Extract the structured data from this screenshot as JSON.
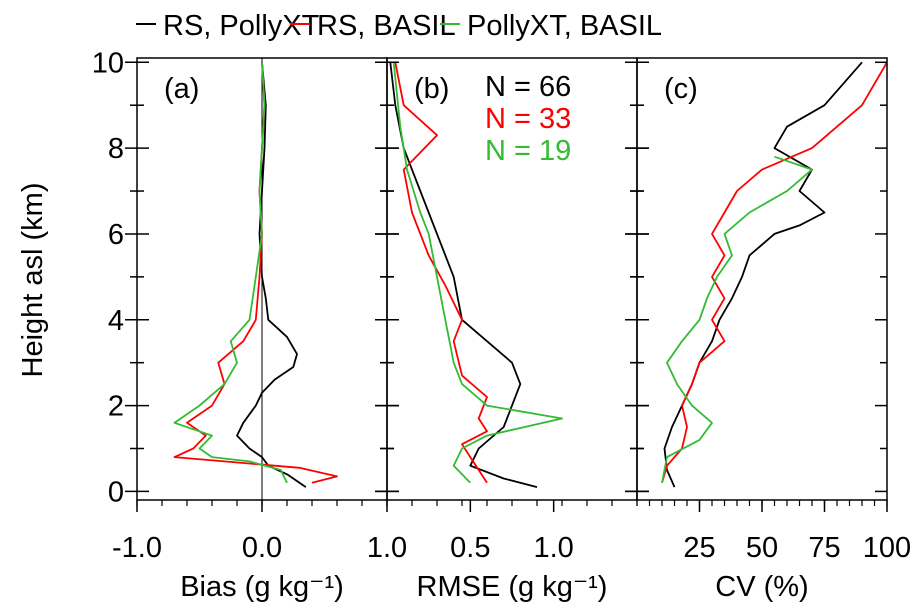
{
  "legend": [
    {
      "name": "RS, PollyXT",
      "color": "#000000"
    },
    {
      "name": "RS, BASIL",
      "color": "#ff0000"
    },
    {
      "name": "PollyXT, BASIL",
      "color": "#33bb33"
    }
  ],
  "shared_y": {
    "label": "Height asl (km)",
    "ticks": [
      0,
      2,
      4,
      6,
      8,
      10
    ],
    "tick_labels": [
      "0",
      "2",
      "4",
      "6",
      "8",
      "10"
    ],
    "range": [
      -0.2,
      10.1
    ]
  },
  "chart_data": [
    {
      "type": "line",
      "panel": "(a)",
      "xlabel": "Bias (g kg⁻¹)",
      "xlim": [
        -1.0,
        1.0
      ],
      "xticks": [
        -1.0,
        0.0,
        1.0
      ],
      "xtick_labels": [
        "-1.0",
        "0.0",
        "1.0"
      ],
      "zero_line": true,
      "series": [
        {
          "name": "RS, PollyXT",
          "color": "#000000",
          "x": [
            0.35,
            0.25,
            0.2,
            0.05,
            0.0,
            -0.1,
            -0.2,
            -0.15,
            -0.05,
            0.0,
            0.1,
            0.25,
            0.28,
            0.2,
            0.05,
            0.03,
            0.0,
            -0.02,
            0.0,
            0.02,
            0.03,
            0.0
          ],
          "y": [
            0.1,
            0.3,
            0.4,
            0.6,
            0.8,
            1.0,
            1.3,
            1.6,
            2.0,
            2.3,
            2.6,
            2.9,
            3.2,
            3.6,
            4.0,
            4.5,
            5.0,
            6.0,
            7.0,
            8.0,
            9.0,
            10.0
          ]
        },
        {
          "name": "RS, BASIL",
          "color": "#ff0000",
          "x": [
            0.4,
            0.6,
            0.3,
            -0.3,
            -0.7,
            -0.55,
            -0.45,
            -0.6,
            -0.4,
            -0.3,
            -0.35,
            -0.15,
            -0.05,
            -0.02,
            0.0,
            -0.02,
            0.0,
            0.02,
            0.0
          ],
          "y": [
            0.2,
            0.35,
            0.55,
            0.7,
            0.8,
            1.0,
            1.3,
            1.6,
            2.0,
            2.5,
            3.0,
            3.5,
            4.0,
            5.0,
            6.0,
            7.0,
            8.0,
            9.0,
            10.0
          ]
        },
        {
          "name": "PollyXT, BASIL",
          "color": "#33bb33",
          "x": [
            0.2,
            0.15,
            -0.1,
            -0.4,
            -0.5,
            -0.4,
            -0.7,
            -0.5,
            -0.3,
            -0.2,
            -0.25,
            -0.1,
            -0.05,
            0.0,
            -0.02,
            0.0,
            0.02,
            0.0
          ],
          "y": [
            0.2,
            0.5,
            0.7,
            0.8,
            1.0,
            1.3,
            1.6,
            2.0,
            2.5,
            3.0,
            3.5,
            4.0,
            5.0,
            6.0,
            7.0,
            8.0,
            9.0,
            10.0
          ]
        }
      ]
    },
    {
      "type": "line",
      "panel": "(b)",
      "xlabel": "RMSE (g kg⁻¹)",
      "xlim": [
        0.0,
        1.5
      ],
      "xticks": [
        0.5,
        1.0
      ],
      "xtick_labels": [
        "0.5",
        "1.0"
      ],
      "annotations": [
        {
          "text": "N = 66",
          "color": "#000000"
        },
        {
          "text": "N = 33",
          "color": "#ff0000"
        },
        {
          "text": "N = 19",
          "color": "#33bb33"
        }
      ],
      "series": [
        {
          "name": "RS, PollyXT",
          "color": "#000000",
          "x": [
            0.9,
            0.7,
            0.5,
            0.55,
            0.7,
            0.75,
            0.8,
            0.75,
            0.6,
            0.45,
            0.4,
            0.3,
            0.2,
            0.15,
            0.1,
            0.05,
            0.02
          ],
          "y": [
            0.1,
            0.3,
            0.6,
            1.0,
            1.5,
            2.0,
            2.5,
            3.0,
            3.5,
            4.0,
            5.0,
            6.0,
            7.0,
            7.5,
            8.0,
            9.0,
            10.0
          ]
        },
        {
          "name": "RS, BASIL",
          "color": "#ff0000",
          "x": [
            0.6,
            0.55,
            0.5,
            0.45,
            0.6,
            0.55,
            0.6,
            0.45,
            0.4,
            0.45,
            0.35,
            0.25,
            0.15,
            0.1,
            0.3,
            0.1,
            0.05
          ],
          "y": [
            0.2,
            0.5,
            0.8,
            1.1,
            1.4,
            1.7,
            2.2,
            2.7,
            3.5,
            4.0,
            4.8,
            5.5,
            6.5,
            7.5,
            8.3,
            9.0,
            10.0
          ]
        },
        {
          "name": "PollyXT, BASIL",
          "color": "#33bb33",
          "x": [
            0.5,
            0.4,
            0.45,
            0.6,
            1.05,
            0.6,
            0.45,
            0.4,
            0.35,
            0.3,
            0.25,
            0.2,
            0.12,
            0.08,
            0.04
          ],
          "y": [
            0.2,
            0.6,
            1.0,
            1.3,
            1.7,
            2.0,
            2.5,
            3.0,
            4.0,
            5.0,
            6.0,
            6.5,
            7.5,
            8.5,
            10.0
          ]
        }
      ]
    },
    {
      "type": "line",
      "panel": "(c)",
      "xlabel": "CV (%)",
      "xlim": [
        0,
        100
      ],
      "xticks": [
        25,
        50,
        75,
        100
      ],
      "xtick_labels": [
        "25",
        "50",
        "75",
        "100"
      ],
      "series": [
        {
          "name": "RS, PollyXT",
          "color": "#000000",
          "x": [
            15,
            12,
            11,
            14,
            18,
            22,
            25,
            30,
            33,
            38,
            42,
            45,
            55,
            65,
            75,
            65,
            70,
            55,
            60,
            75,
            90
          ],
          "y": [
            0.1,
            0.5,
            1.0,
            1.5,
            2.0,
            2.5,
            3.0,
            3.5,
            4.0,
            4.5,
            5.0,
            5.5,
            6.0,
            6.2,
            6.5,
            7.0,
            7.5,
            8.0,
            8.5,
            9.0,
            10.0
          ]
        },
        {
          "name": "RS, BASIL",
          "color": "#ff0000",
          "x": [
            10,
            12,
            18,
            20,
            18,
            22,
            25,
            35,
            30,
            35,
            30,
            35,
            30,
            35,
            40,
            50,
            70,
            90,
            100
          ],
          "y": [
            0.2,
            0.6,
            1.0,
            1.5,
            2.0,
            2.5,
            3.0,
            3.5,
            4.0,
            4.5,
            5.0,
            5.5,
            6.0,
            6.5,
            7.0,
            7.5,
            8.0,
            9.0,
            10.0
          ]
        },
        {
          "name": "PollyXT, BASIL",
          "color": "#33bb33",
          "x": [
            10,
            12,
            25,
            30,
            22,
            16,
            12,
            18,
            25,
            28,
            32,
            38,
            35,
            45,
            60,
            70,
            55
          ],
          "y": [
            0.2,
            0.8,
            1.2,
            1.6,
            2.0,
            2.5,
            3.0,
            3.5,
            4.0,
            4.5,
            5.0,
            5.5,
            6.0,
            6.5,
            7.0,
            7.5,
            7.8
          ]
        }
      ]
    }
  ]
}
